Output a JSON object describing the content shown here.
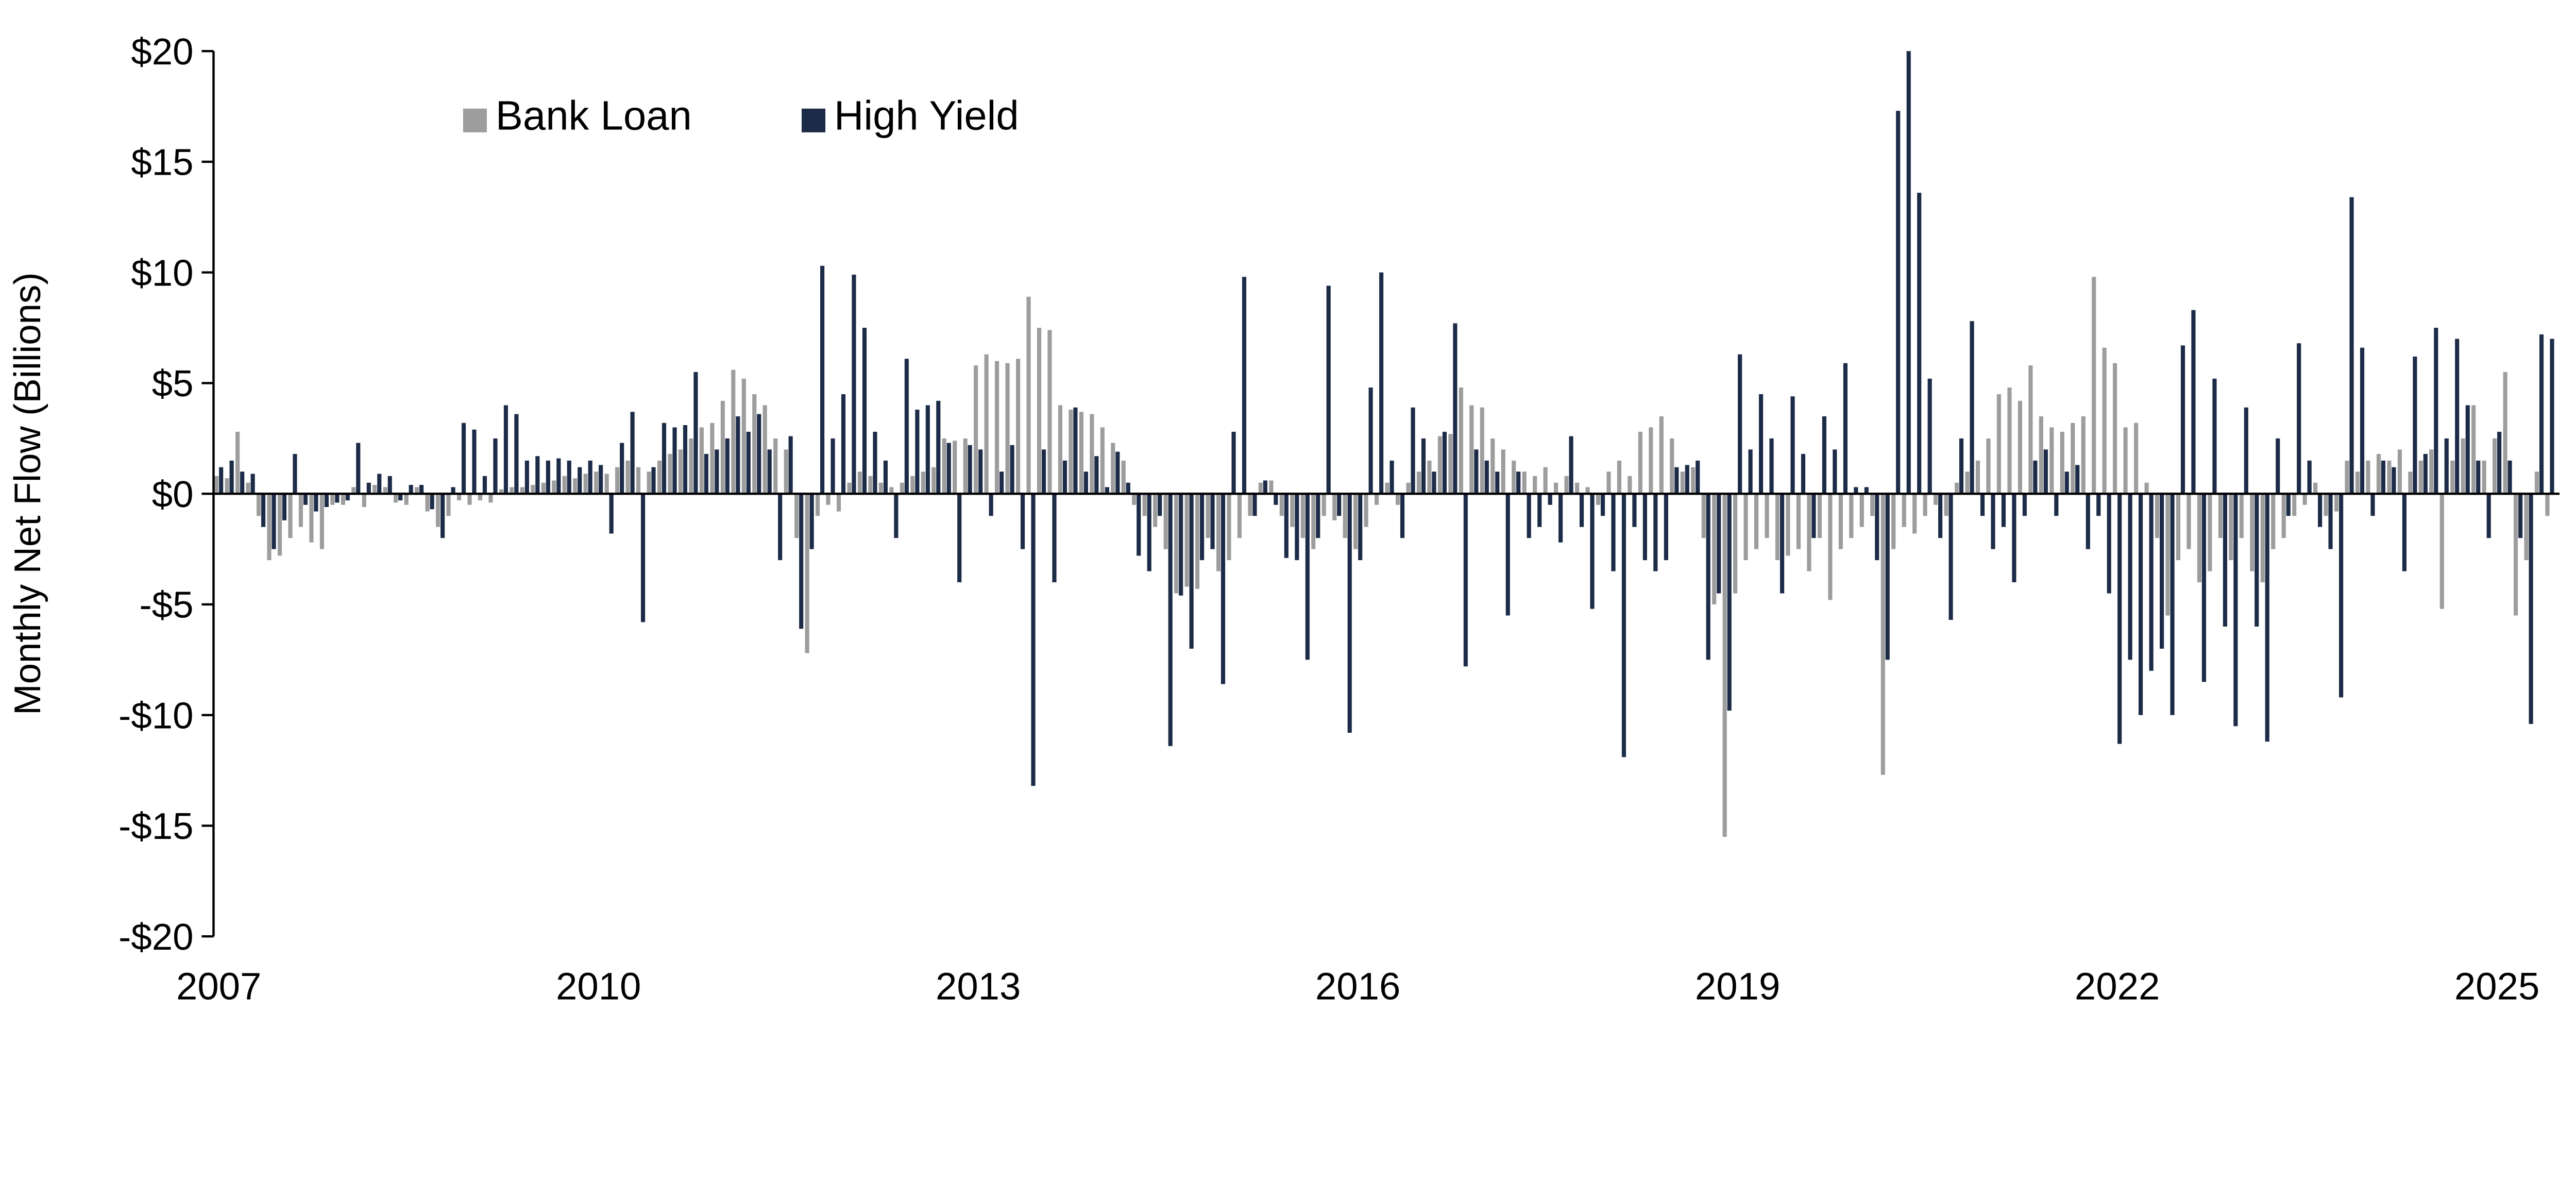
{
  "chart_data": {
    "type": "bar",
    "ylabel": "Monthly Net Flow (Billions)",
    "ylim": [
      -20,
      20
    ],
    "grid": false,
    "legend_position": "top-left",
    "x_start": "2007-01",
    "x_frequency": "monthly",
    "n_months": 222,
    "x_tick_labels": [
      "2007",
      "2010",
      "2013",
      "2016",
      "2019",
      "2022",
      "2025"
    ],
    "x_tick_month_indices": [
      0,
      36,
      72,
      108,
      144,
      180,
      216
    ],
    "y_tick_values": [
      20,
      15,
      10,
      5,
      0,
      -5,
      -10,
      -15,
      -20
    ],
    "y_tick_labels": [
      "$20",
      "$15",
      "$10",
      "$5",
      "$0",
      "-$5",
      "-$10",
      "-$15",
      "-$20"
    ],
    "series": [
      {
        "name": "Bank Loan",
        "color": "#9d9d9d",
        "values": [
          0.8,
          0.7,
          2.8,
          0.5,
          -1.0,
          -3.0,
          -2.8,
          -2.0,
          -1.5,
          -2.2,
          -2.5,
          -0.5,
          -0.5,
          0.3,
          -0.6,
          0.4,
          0.3,
          -0.4,
          -0.5,
          0.3,
          -0.8,
          -1.5,
          -1.0,
          -0.3,
          -0.5,
          -0.3,
          -0.4,
          0.2,
          0.3,
          0.3,
          0.4,
          0.5,
          0.6,
          0.8,
          0.7,
          0.9,
          1.0,
          0.9,
          1.2,
          1.5,
          1.2,
          1.0,
          1.5,
          1.8,
          2.0,
          2.5,
          3.0,
          3.2,
          4.2,
          5.6,
          5.2,
          4.5,
          4.0,
          2.5,
          2.0,
          -2.0,
          -7.2,
          -1.0,
          -0.5,
          -0.8,
          0.5,
          1.0,
          0.8,
          0.5,
          0.3,
          0.5,
          0.8,
          1.0,
          1.2,
          2.5,
          2.4,
          2.5,
          5.8,
          6.3,
          6.0,
          5.9,
          6.1,
          8.9,
          7.5,
          7.4,
          4.0,
          3.8,
          3.7,
          3.6,
          3.0,
          2.3,
          1.5,
          -0.5,
          -1.0,
          -1.5,
          -2.5,
          -4.5,
          -4.2,
          -4.3,
          -2.0,
          -3.5,
          -3.0,
          -2.0,
          -1.0,
          0.5,
          0.6,
          -1.0,
          -1.5,
          -2.0,
          -2.5,
          -1.0,
          -1.2,
          -2.0,
          -2.5,
          -1.5,
          -0.5,
          0.5,
          -0.5,
          0.5,
          1.0,
          1.5,
          2.6,
          2.7,
          4.8,
          4.0,
          3.9,
          2.5,
          2.0,
          1.5,
          1.0,
          0.8,
          1.2,
          0.5,
          0.8,
          0.5,
          0.3,
          -0.5,
          1.0,
          1.5,
          0.8,
          2.8,
          3.0,
          3.5,
          2.5,
          1.0,
          1.2,
          -2.0,
          -5.0,
          -15.5,
          -4.5,
          -3.0,
          -2.5,
          -2.0,
          -3.0,
          -2.8,
          -2.5,
          -3.5,
          -2.0,
          -4.8,
          -2.5,
          -2.0,
          -1.5,
          -1.0,
          -12.7,
          -2.5,
          -1.5,
          -1.8,
          -1.0,
          -0.5,
          -1.0,
          0.5,
          1.0,
          1.5,
          2.5,
          4.5,
          4.8,
          4.2,
          5.8,
          3.5,
          3.0,
          2.8,
          3.2,
          3.5,
          9.8,
          6.6,
          5.9,
          3.0,
          3.2,
          0.5,
          -2.0,
          -5.5,
          -3.0,
          -2.5,
          -4.0,
          -3.5,
          -2.0,
          -3.0,
          -2.0,
          -3.5,
          -4.0,
          -2.5,
          -2.0,
          -1.0,
          -0.5,
          0.5,
          -1.0,
          -0.8,
          1.5,
          1.0,
          1.5,
          1.8,
          1.5,
          2.0,
          1.0,
          1.5,
          2.0,
          -5.2,
          1.5,
          2.5,
          4.0,
          1.5,
          2.5,
          5.5,
          -5.5,
          -3.0,
          1.0,
          -1.0
        ]
      },
      {
        "name": "High Yield",
        "color": "#1c2b47",
        "values": [
          1.2,
          1.5,
          1.0,
          0.9,
          -1.5,
          -2.5,
          -1.2,
          1.8,
          -0.5,
          -0.8,
          -0.6,
          -0.4,
          -0.3,
          2.3,
          0.5,
          0.9,
          0.8,
          -0.3,
          0.4,
          0.4,
          -0.7,
          -2.0,
          0.3,
          3.2,
          2.9,
          0.8,
          2.5,
          4.0,
          3.6,
          1.5,
          1.7,
          1.5,
          1.6,
          1.5,
          1.2,
          1.5,
          1.3,
          -1.8,
          2.3,
          3.7,
          -5.8,
          1.2,
          3.2,
          3.0,
          3.1,
          5.5,
          1.8,
          2.0,
          2.5,
          3.5,
          2.8,
          3.6,
          2.0,
          -3.0,
          2.6,
          -6.1,
          -2.5,
          10.3,
          2.5,
          4.5,
          9.9,
          7.5,
          2.8,
          1.5,
          -2.0,
          6.1,
          3.8,
          4.0,
          4.2,
          2.3,
          -4.0,
          2.2,
          2.0,
          -1.0,
          1.0,
          2.2,
          -2.5,
          -13.2,
          2.0,
          -4.0,
          1.5,
          3.9,
          1.0,
          1.7,
          0.3,
          1.9,
          0.5,
          -2.8,
          -3.5,
          -1.0,
          -11.4,
          -4.6,
          -7.0,
          -3.0,
          -2.5,
          -8.6,
          2.8,
          9.8,
          -1.0,
          0.6,
          -0.5,
          -2.9,
          -3.0,
          -7.5,
          -2.0,
          9.4,
          -1.0,
          -10.8,
          -3.0,
          4.8,
          10.0,
          1.5,
          -2.0,
          3.9,
          2.5,
          1.0,
          2.8,
          7.7,
          -7.8,
          2.0,
          1.5,
          1.0,
          -5.5,
          1.0,
          -2.0,
          -1.5,
          -0.5,
          -2.2,
          2.6,
          -1.5,
          -5.2,
          -1.0,
          -3.5,
          -11.9,
          -1.5,
          -3.0,
          -3.5,
          -3.0,
          1.2,
          1.3,
          1.5,
          -7.5,
          -4.5,
          -9.8,
          6.3,
          2.0,
          4.5,
          2.5,
          -4.5,
          4.4,
          1.8,
          -2.0,
          3.5,
          2.0,
          5.9,
          0.3,
          0.3,
          -3.0,
          -7.5,
          17.3,
          20.0,
          13.6,
          5.2,
          -2.0,
          -5.7,
          2.5,
          7.8,
          -1.0,
          -2.5,
          -1.5,
          -4.0,
          -1.0,
          1.5,
          2.0,
          -1.0,
          1.0,
          1.3,
          -2.5,
          -1.0,
          -4.5,
          -11.3,
          -7.5,
          -10.0,
          -8.0,
          -7.0,
          -10.0,
          6.7,
          8.3,
          -8.5,
          5.2,
          -6.0,
          -10.5,
          3.9,
          -6.0,
          -11.2,
          2.5,
          -1.0,
          6.8,
          1.5,
          -1.5,
          -2.5,
          -9.2,
          13.4,
          6.6,
          -1.0,
          1.5,
          1.2,
          -3.5,
          6.2,
          1.8,
          7.5,
          2.5,
          7.0,
          4.0,
          1.5,
          -2.0,
          2.8,
          1.5,
          -2.0,
          -10.4,
          7.2,
          7.0
        ]
      }
    ]
  }
}
